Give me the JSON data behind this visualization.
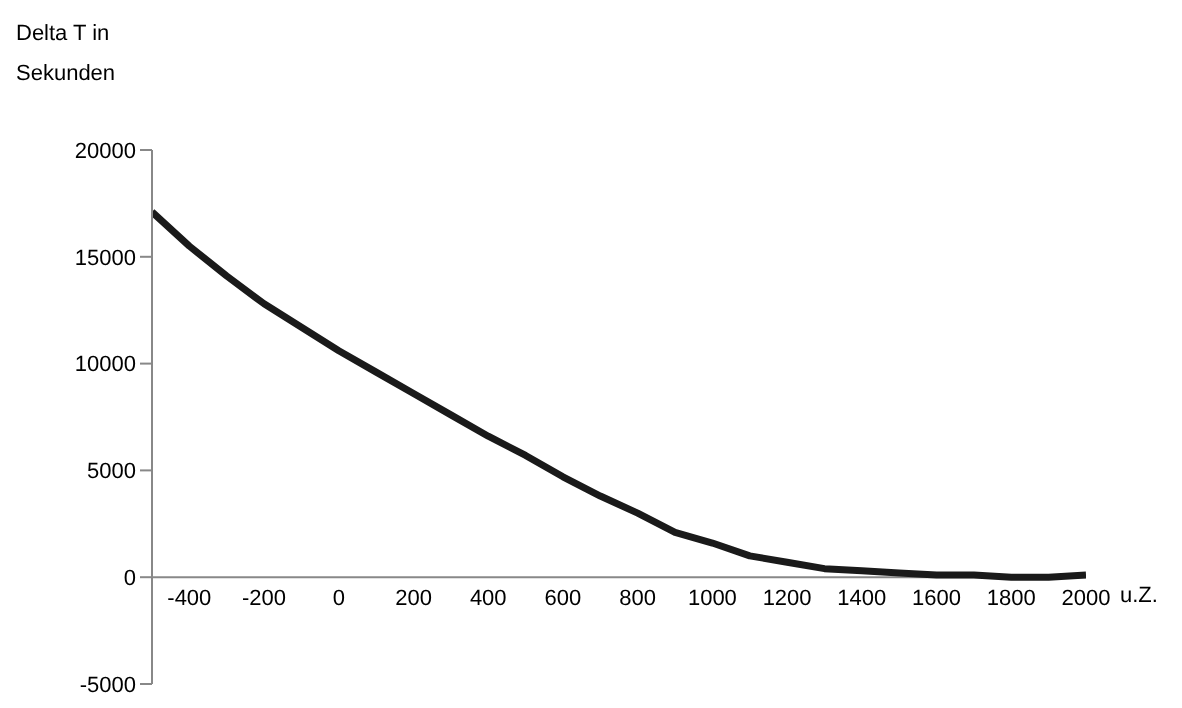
{
  "chart_data": {
    "type": "line",
    "ylabel": "Delta T in Sekunden",
    "xlabel": "u.Z.",
    "x": [
      -500,
      -400,
      -300,
      -200,
      -100,
      0,
      100,
      200,
      300,
      400,
      500,
      600,
      700,
      800,
      900,
      1000,
      1100,
      1200,
      1300,
      1400,
      1500,
      1600,
      1700,
      1800,
      1900,
      2000
    ],
    "series": [
      {
        "color": "#1a1a1a",
        "values": [
          17100,
          15500,
          14100,
          12800,
          11700,
          10600,
          9600,
          8600,
          7600,
          6600,
          5700,
          4700,
          3800,
          3000,
          2100,
          1600,
          1000,
          700,
          400,
          300,
          200,
          100,
          100,
          0,
          0,
          100
        ]
      }
    ],
    "xlim": [
      -500,
      2000
    ],
    "xticks": [
      -400,
      -200,
      0,
      200,
      400,
      600,
      800,
      1000,
      1200,
      1400,
      1600,
      1800,
      2000
    ],
    "ylim": [
      -5000,
      20000
    ],
    "yticks": [
      -5000,
      0,
      5000,
      10000,
      15000,
      20000
    ],
    "grid": false,
    "legend": false,
    "marker": "none",
    "line_style": "solid"
  }
}
